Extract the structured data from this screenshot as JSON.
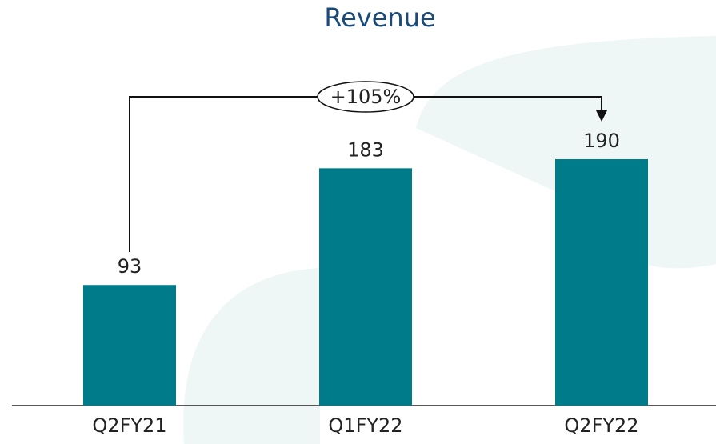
{
  "chart_data": {
    "type": "bar",
    "title": "Revenue",
    "categories": [
      "Q2FY21",
      "Q1FY22",
      "Q2FY22"
    ],
    "values": [
      93,
      183,
      190
    ],
    "color": "#007b8a",
    "annotation": "+105%"
  }
}
